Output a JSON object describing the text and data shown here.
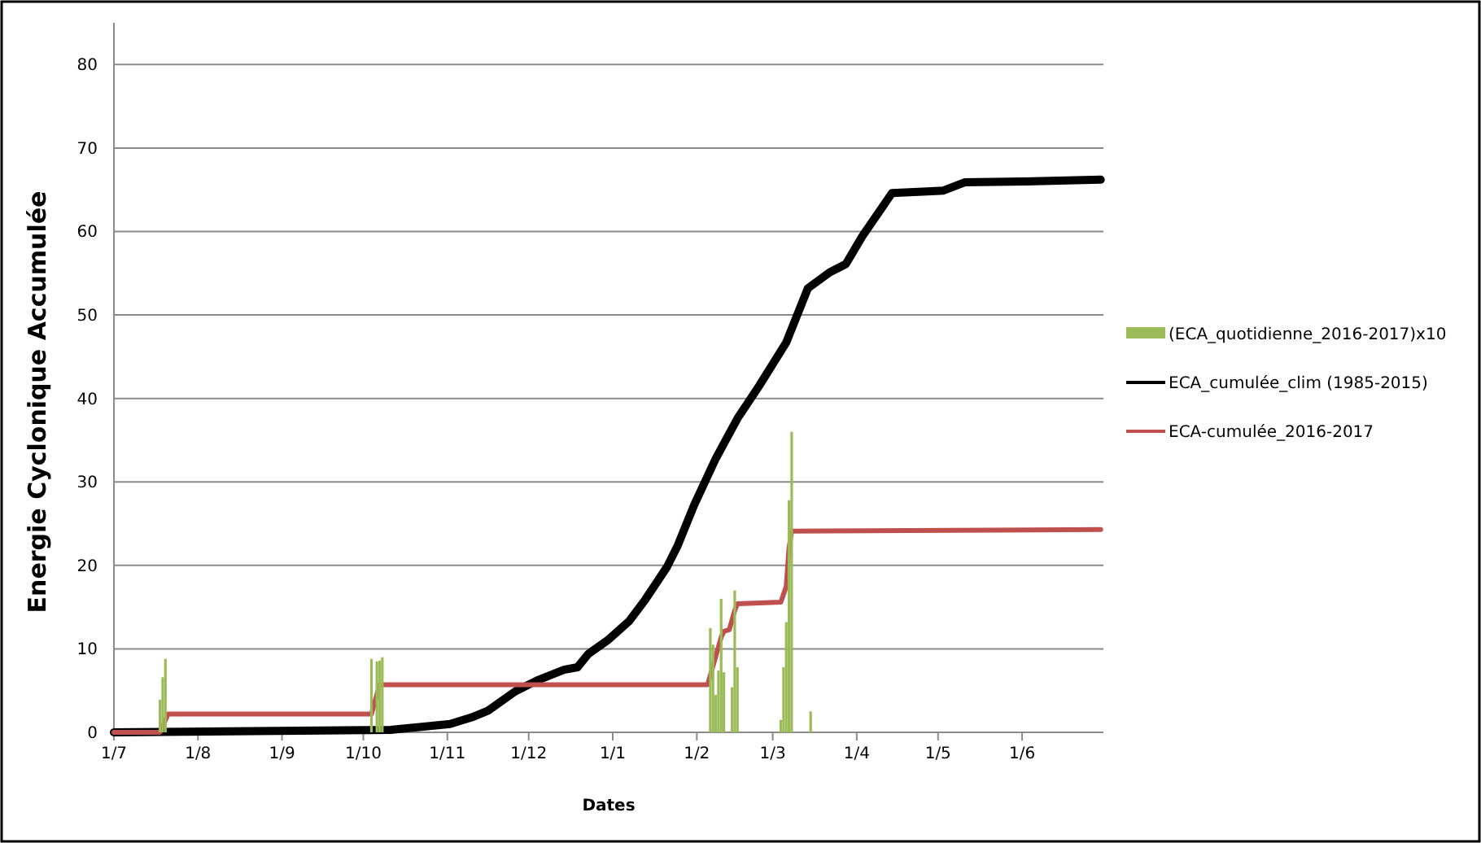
{
  "chart_data": {
    "type": "line",
    "xlabel": "Dates",
    "ylabel": "Energie Cyclonique Accumulée",
    "xlim": [
      "2016-07-01",
      "2017-07-01"
    ],
    "xticks": [
      {
        "value": "2016-07-01",
        "label": "1/7"
      },
      {
        "value": "2016-08-01",
        "label": "1/8"
      },
      {
        "value": "2016-09-01",
        "label": "1/9"
      },
      {
        "value": "2016-10-01",
        "label": "1/10"
      },
      {
        "value": "2016-11-01",
        "label": "1/11"
      },
      {
        "value": "2016-12-01",
        "label": "1/12"
      },
      {
        "value": "2017-01-01",
        "label": "1/1"
      },
      {
        "value": "2017-02-01",
        "label": "1/2"
      },
      {
        "value": "2017-03-01",
        "label": "1/3"
      },
      {
        "value": "2017-04-01",
        "label": "1/4"
      },
      {
        "value": "2017-05-01",
        "label": "1/5"
      },
      {
        "value": "2017-06-01",
        "label": "1/6"
      }
    ],
    "ylim": [
      0,
      85
    ],
    "yticks": [
      0,
      10,
      20,
      30,
      40,
      50,
      60,
      70,
      80
    ],
    "grid": "y",
    "legend": "right",
    "series": [
      {
        "name": "(ECA_quotidienne_2016-2017)x10",
        "type": "bar",
        "color": "#9bbb59",
        "x": [
          "2016-07-18",
          "2016-07-19",
          "2016-07-20",
          "2016-10-04",
          "2016-10-06",
          "2016-10-07",
          "2016-10-08",
          "2017-02-06",
          "2017-02-07",
          "2017-02-08",
          "2017-02-09",
          "2017-02-10",
          "2017-02-11",
          "2017-02-14",
          "2017-02-15",
          "2017-02-16",
          "2017-03-04",
          "2017-03-05",
          "2017-03-06",
          "2017-03-07",
          "2017-03-08",
          "2017-03-15"
        ],
        "values": [
          3.9,
          6.6,
          8.8,
          8.8,
          8.5,
          8.6,
          9.0,
          12.5,
          10.5,
          4.5,
          7.4,
          16.0,
          7.2,
          5.4,
          17.0,
          7.8,
          1.5,
          7.8,
          13.2,
          27.8,
          36.0,
          2.5
        ]
      },
      {
        "name": "ECA_cumulée_clim (1985-2015)",
        "color": "#000000",
        "x": [
          "2016-07-01",
          "2016-10-11",
          "2016-11-02",
          "2016-11-10",
          "2016-11-16",
          "2016-11-26",
          "2016-12-04",
          "2016-12-14",
          "2016-12-19",
          "2016-12-23",
          "2016-12-30",
          "2017-01-07",
          "2017-01-13",
          "2017-01-21",
          "2017-01-25",
          "2017-01-31",
          "2017-02-08",
          "2017-02-16",
          "2017-02-24",
          "2017-03-06",
          "2017-03-14",
          "2017-03-22",
          "2017-03-28",
          "2017-04-03",
          "2017-04-14",
          "2017-04-27",
          "2017-05-03",
          "2017-05-11",
          "2017-06-02",
          "2017-06-30"
        ],
        "values": [
          0,
          0.3,
          1.0,
          1.8,
          2.6,
          4.9,
          6.2,
          7.5,
          7.8,
          9.4,
          11.0,
          13.3,
          15.9,
          19.8,
          22.4,
          27.2,
          32.8,
          37.6,
          41.5,
          46.7,
          53.2,
          55.1,
          56.1,
          59.4,
          64.6,
          64.8,
          64.9,
          65.9,
          66.0,
          66.2
        ]
      },
      {
        "name": "ECA-cumulée_2016-2017",
        "color": "#c0504d",
        "x": [
          "2016-07-01",
          "2016-07-18",
          "2016-07-21",
          "2016-10-04",
          "2016-10-07",
          "2017-02-05",
          "2017-02-08",
          "2017-02-10",
          "2017-02-11",
          "2017-02-13",
          "2017-02-15",
          "2017-02-16",
          "2017-03-04",
          "2017-03-06",
          "2017-03-07",
          "2017-03-08",
          "2017-06-30"
        ],
        "values": [
          0,
          0,
          2.2,
          2.2,
          5.7,
          5.7,
          9.1,
          11.4,
          12.1,
          12.3,
          14.6,
          15.4,
          15.6,
          17.5,
          22.0,
          24.1,
          24.3
        ]
      }
    ]
  }
}
